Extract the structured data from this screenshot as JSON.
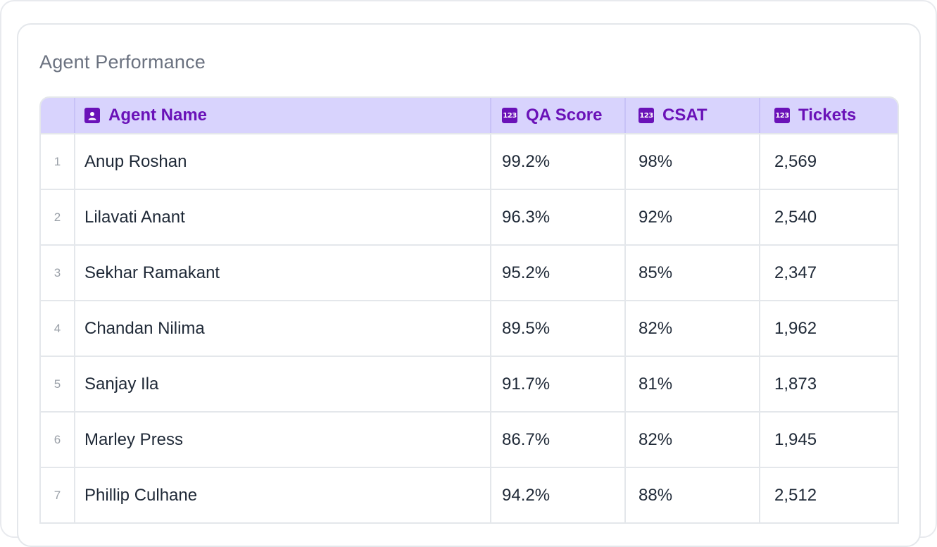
{
  "card": {
    "title": "Agent Performance"
  },
  "table": {
    "columns": [
      {
        "label": "Agent Name",
        "icon": "person-icon"
      },
      {
        "label": "QA Score",
        "icon": "number-123-icon"
      },
      {
        "label": "CSAT",
        "icon": "number-123-icon"
      },
      {
        "label": "Tickets",
        "icon": "number-123-icon"
      }
    ],
    "number_icon_text": "123",
    "rows": [
      {
        "index": "1",
        "name": "Anup Roshan",
        "qa": "99.2%",
        "csat": "98%",
        "tickets": "2,569"
      },
      {
        "index": "2",
        "name": "Lilavati Anant",
        "qa": "96.3%",
        "csat": "92%",
        "tickets": "2,540"
      },
      {
        "index": "3",
        "name": "Sekhar Ramakant",
        "qa": "95.2%",
        "csat": "85%",
        "tickets": "2,347"
      },
      {
        "index": "4",
        "name": "Chandan Nilima",
        "qa": "89.5%",
        "csat": "82%",
        "tickets": "1,962"
      },
      {
        "index": "5",
        "name": "Sanjay Ila",
        "qa": "91.7%",
        "csat": "81%",
        "tickets": "1,873"
      },
      {
        "index": "6",
        "name": "Marley Press",
        "qa": "86.7%",
        "csat": "82%",
        "tickets": "1,945"
      },
      {
        "index": "7",
        "name": "Phillip Culhane",
        "qa": "94.2%",
        "csat": "88%",
        "tickets": "2,512"
      }
    ]
  },
  "colors": {
    "header_bg": "#d8d3fd",
    "header_text": "#6a12b8",
    "border": "#e4e7eb",
    "title_text": "#6b7280"
  }
}
